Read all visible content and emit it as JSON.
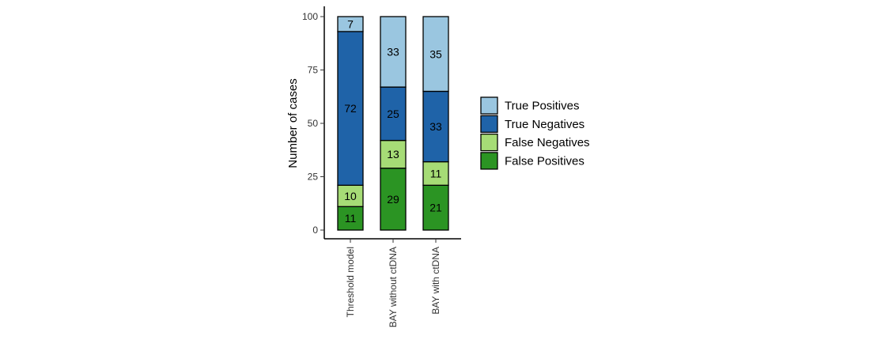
{
  "chart_data": {
    "type": "bar",
    "stacked": true,
    "categories": [
      "Threshold model",
      "BAY without ctDNA",
      "BAY with ctDNA"
    ],
    "series": [
      {
        "name": "False Positives",
        "color": "#2b9423",
        "values": [
          11,
          29,
          21
        ]
      },
      {
        "name": "False Negatives",
        "color": "#a6dc76",
        "values": [
          10,
          13,
          11
        ]
      },
      {
        "name": "True Negatives",
        "color": "#1f63a8",
        "values": [
          72,
          25,
          33
        ]
      },
      {
        "name": "True Positives",
        "color": "#9ac6e0",
        "values": [
          7,
          33,
          35
        ]
      }
    ],
    "legend_order": [
      "True Positives",
      "True Negatives",
      "False Negatives",
      "False Positives"
    ],
    "legend_position": "right",
    "xlabel": "",
    "ylabel": "Number of cases",
    "ylim": [
      0,
      100
    ],
    "yticks": [
      0,
      25,
      50,
      75,
      100
    ],
    "grid": false
  }
}
